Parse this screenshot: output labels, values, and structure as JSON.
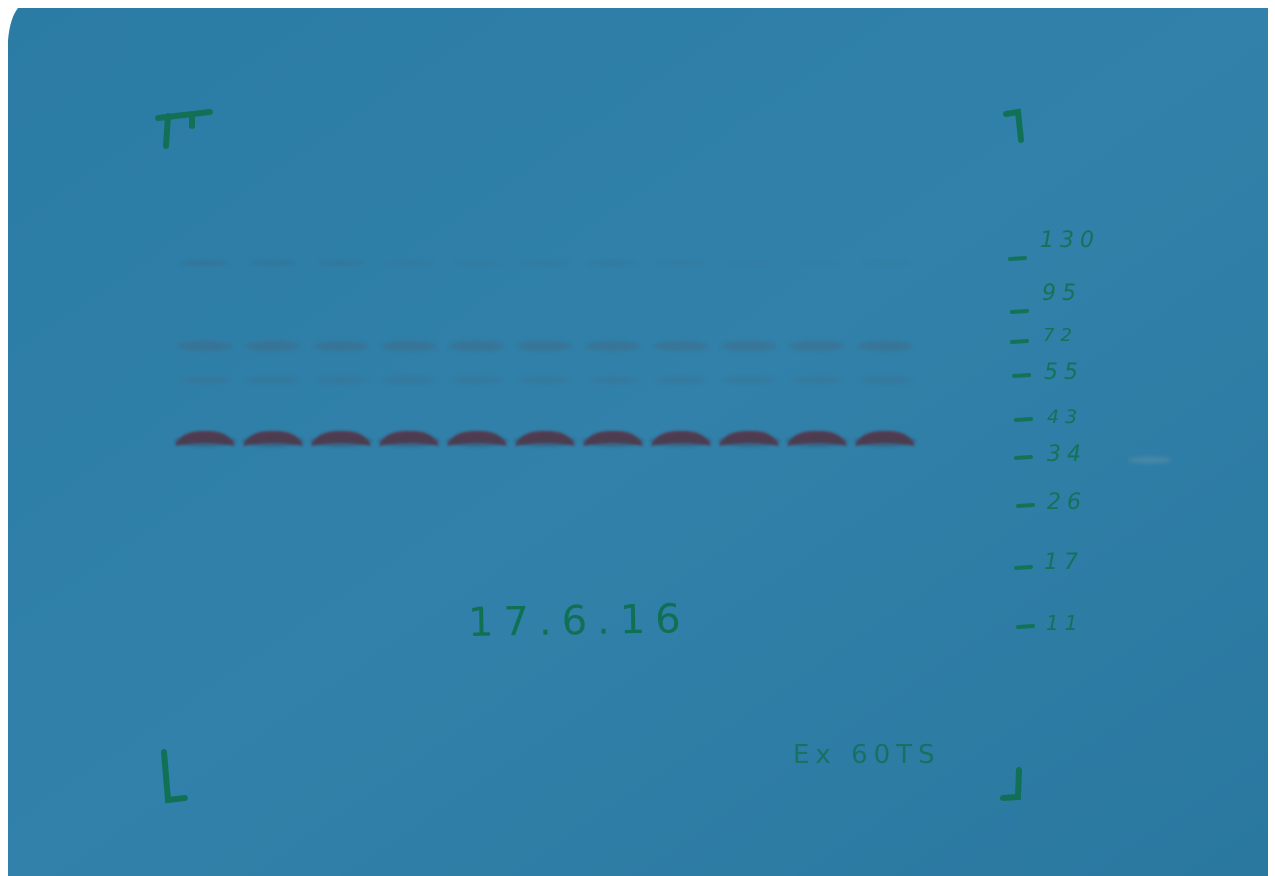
{
  "blot": {
    "lane_count": 11,
    "membrane_color": "#2f7fa6",
    "band_color": "#5a2f3f",
    "marker_color": "#0e6f4c"
  },
  "annotations": {
    "date": "17.6.16",
    "exposure": "Ex 60TS"
  },
  "ladder": {
    "labels": [
      "130",
      "95",
      "72",
      "55",
      "43",
      "34",
      "26",
      "17",
      "11"
    ]
  }
}
